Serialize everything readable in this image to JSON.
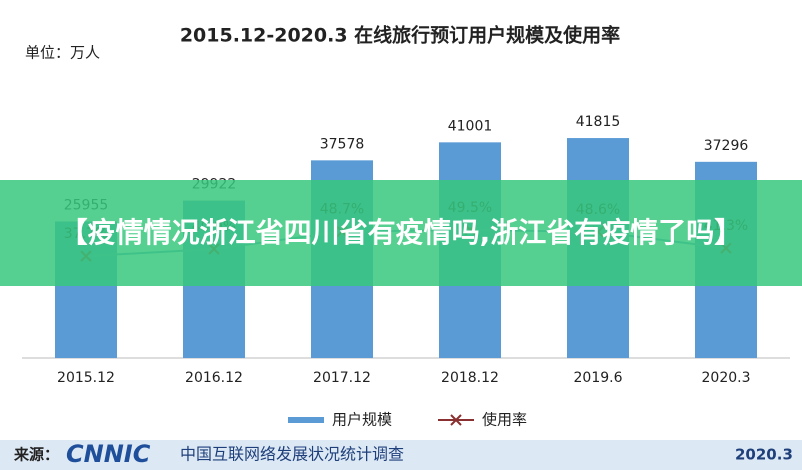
{
  "chart_data": {
    "type": "bar",
    "title": "2015.12-2020.3 在线旅行预订用户规模及使用率",
    "subtitle": "单位：万人",
    "categories": [
      "2015.12",
      "2016.12",
      "2017.12",
      "2018.12",
      "2019.6",
      "2020.3"
    ],
    "series": [
      {
        "name": "用户规模",
        "color": "#5b9bd5",
        "type": "bar",
        "values": [
          25955,
          29922,
          37578,
          41001,
          41815,
          37296
        ]
      },
      {
        "name": "使用率",
        "color": "#8b3030",
        "type": "line",
        "axis": "y2",
        "values": [
          37.7,
          40.9,
          48.7,
          49.5,
          48.6,
          41.3
        ],
        "value_labels": [
          "37.7%",
          "40.9%",
          "48.7%",
          "49.5%",
          "48.6%",
          "41.3%"
        ]
      }
    ],
    "ylim": [
      0,
      50000
    ],
    "y2lim": [
      -8,
      110
    ],
    "legend": "bottom"
  },
  "banner": {
    "text": "【疫情情况浙江省四川省有疫情吗,浙江省有疫情了吗】"
  },
  "footer": {
    "source": "来源：",
    "logo": "CNNIC",
    "survey": "中国互联网络发展状况统计调查",
    "date": "2020.3"
  }
}
